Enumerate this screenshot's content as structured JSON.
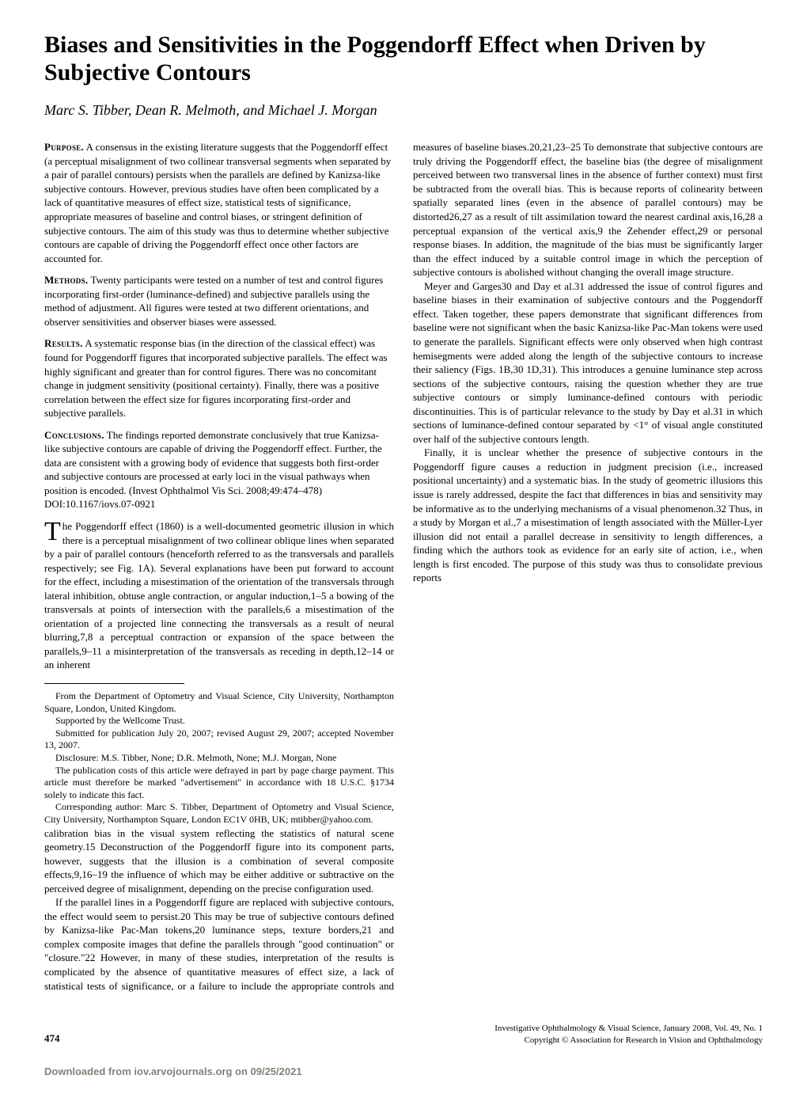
{
  "title": "Biases and Sensitivities in the Poggendorff Effect when Driven by Subjective Contours",
  "authors": "Marc S. Tibber, Dean R. Melmoth, and Michael J. Morgan",
  "abstract": {
    "purpose": {
      "label": "Purpose.",
      "text": "A consensus in the existing literature suggests that the Poggendorff effect (a perceptual misalignment of two collinear transversal segments when separated by a pair of parallel contours) persists when the parallels are defined by Kanizsa-like subjective contours. However, previous studies have often been complicated by a lack of quantitative measures of effect size, statistical tests of significance, appropriate measures of baseline and control biases, or stringent definition of subjective contours. The aim of this study was thus to determine whether subjective contours are capable of driving the Poggendorff effect once other factors are accounted for."
    },
    "methods": {
      "label": "Methods.",
      "text": "Twenty participants were tested on a number of test and control figures incorporating first-order (luminance-defined) and subjective parallels using the method of adjustment. All figures were tested at two different orientations, and observer sensitivities and observer biases were assessed."
    },
    "results": {
      "label": "Results.",
      "text": "A systematic response bias (in the direction of the classical effect) was found for Poggendorff figures that incorporated subjective parallels. The effect was highly significant and greater than for control figures. There was no concomitant change in judgment sensitivity (positional certainty). Finally, there was a positive correlation between the effect size for figures incorporating first-order and subjective parallels."
    },
    "conclusions": {
      "label": "Conclusions.",
      "text": "The findings reported demonstrate conclusively that true Kanizsa-like subjective contours are capable of driving the Poggendorff effect. Further, the data are consistent with a growing body of evidence that suggests both first-order and subjective contours are processed at early loci in the visual pathways when position is encoded. (Invest Ophthalmol Vis Sci. 2008;49:474–478) DOI:10.1167/iovs.07-0921"
    }
  },
  "body": {
    "p1": "The Poggendorff effect (1860) is a well-documented geometric illusion in which there is a perceptual misalignment of two collinear oblique lines when separated by a pair of parallel contours (henceforth referred to as the transversals and parallels respectively; see Fig. 1A). Several explanations have been put forward to account for the effect, including a misestimation of the orientation of the transversals through lateral inhibition, obtuse angle contraction, or angular induction,1–5 a bowing of the transversals at points of intersection with the parallels,6 a misestimation of the orientation of a projected line connecting the transversals as a result of neural blurring,7,8 a perceptual contraction or expansion of the space between the parallels,9–11 a misinterpretation of the transversals as receding in depth,12–14 or an inherent",
    "p2": "calibration bias in the visual system reflecting the statistics of natural scene geometry.15 Deconstruction of the Poggendorff figure into its component parts, however, suggests that the illusion is a combination of several composite effects,9,16–19 the influence of which may be either additive or subtractive on the perceived degree of misalignment, depending on the precise configuration used.",
    "p3": "If the parallel lines in a Poggendorff figure are replaced with subjective contours, the effect would seem to persist.20 This may be true of subjective contours defined by Kanizsa-like Pac-Man tokens,20 luminance steps, texture borders,21 and complex composite images that define the parallels through \"good continuation\" or \"closure.\"22 However, in many of these studies, interpretation of the results is complicated by the absence of quantitative measures of effect size, a lack of statistical tests of significance, or a failure to include the appropriate controls and measures of baseline biases.20,21,23–25 To demonstrate that subjective contours are truly driving the Poggendorff effect, the baseline bias (the degree of misalignment perceived between two transversal lines in the absence of further context) must first be subtracted from the overall bias. This is because reports of colinearity between spatially separated lines (even in the absence of parallel contours) may be distorted26,27 as a result of tilt assimilation toward the nearest cardinal axis,16,28 a perceptual expansion of the vertical axis,9 the Zehender effect,29 or personal response biases. In addition, the magnitude of the bias must be significantly larger than the effect induced by a suitable control image in which the perception of subjective contours is abolished without changing the overall image structure.",
    "p4": "Meyer and Garges30 and Day et al.31 addressed the issue of control figures and baseline biases in their examination of subjective contours and the Poggendorff effect. Taken together, these papers demonstrate that significant differences from baseline were not significant when the basic Kanizsa-like Pac-Man tokens were used to generate the parallels. Significant effects were only observed when high contrast hemisegments were added along the length of the subjective contours to increase their saliency (Figs. 1B,30 1D,31). This introduces a genuine luminance step across sections of the subjective contours, raising the question whether they are true subjective contours or simply luminance-defined contours with periodic discontinuities. This is of particular relevance to the study by Day et al.31 in which sections of luminance-defined contour separated by <1° of visual angle constituted over half of the subjective contours length.",
    "p5": "Finally, it is unclear whether the presence of subjective contours in the Poggendorff figure causes a reduction in judgment precision (i.e., increased positional uncertainty) and a systematic bias. In the study of geometric illusions this issue is rarely addressed, despite the fact that differences in bias and sensitivity may be informative as to the underlying mechanisms of a visual phenomenon.32 Thus, in a study by Morgan et al.,7 a misestimation of length associated with the Müller-Lyer illusion did not entail a parallel decrease in sensitivity to length differences, a finding which the authors took as evidence for an early site of action, i.e., when length is first encoded. The purpose of this study was thus to consolidate previous reports"
  },
  "affiliation": {
    "l1": "From the Department of Optometry and Visual Science, City University, Northampton Square, London, United Kingdom.",
    "l2": "Supported by the Wellcome Trust.",
    "l3": "Submitted for publication July 20, 2007; revised August 29, 2007; accepted November 13, 2007.",
    "l4": "Disclosure: M.S. Tibber, None; D.R. Melmoth, None; M.J. Morgan, None",
    "l5": "The publication costs of this article were defrayed in part by page charge payment. This article must therefore be marked \"advertisement\" in accordance with 18 U.S.C. §1734 solely to indicate this fact.",
    "l6": "Corresponding author: Marc S. Tibber, Department of Optometry and Visual Science, City University, Northampton Square, London EC1V 0HB, UK; mtibber@yahoo.com."
  },
  "footer": {
    "pagenum": "474",
    "line1": "Investigative Ophthalmology & Visual Science, January 2008, Vol. 49, No. 1",
    "line2": "Copyright © Association for Research in Vision and Ophthalmology"
  },
  "download": "Downloaded from iov.arvojournals.org on 09/25/2021"
}
